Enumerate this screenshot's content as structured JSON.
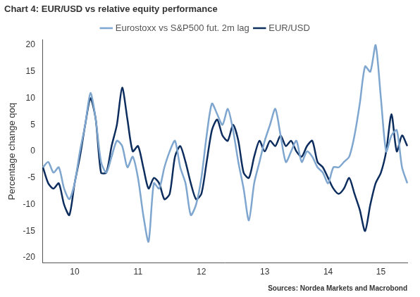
{
  "chart_data": {
    "type": "line",
    "title": "Chart 4: EUR/USD vs relative equity performance",
    "y_label": "Percentage change qoq",
    "source": "Sources: Nordea Markets and Macrobond",
    "categories": [
      null,
      null,
      null,
      null,
      null,
      null,
      "10",
      null,
      null,
      null,
      null,
      null,
      null,
      null,
      null,
      null,
      null,
      null,
      "11",
      null,
      null,
      null,
      null,
      null,
      null,
      null,
      null,
      null,
      null,
      null,
      "12",
      null,
      null,
      null,
      null,
      null,
      null,
      null,
      null,
      null,
      null,
      null,
      "13",
      null,
      null,
      null,
      null,
      null,
      null,
      null,
      null,
      null,
      null,
      null,
      "14",
      null,
      null,
      null,
      null,
      null,
      null,
      null,
      null,
      null,
      "15",
      null,
      null,
      null,
      null,
      null
    ],
    "series": [
      {
        "name": "Eurostoxx vs S&P500 fut. 2m lag",
        "color": "#7ea6cf",
        "values": [
          -3,
          -2,
          -4,
          -3,
          -7,
          -9,
          -6,
          0,
          5,
          11,
          6,
          -2,
          -4,
          -1,
          2,
          1,
          -3,
          -1,
          -5,
          -12,
          -17,
          -6,
          -7,
          -3,
          0,
          2,
          -3,
          -6,
          -12,
          -10,
          -5,
          3,
          9,
          7,
          5,
          8,
          4,
          -2,
          -7,
          -13,
          -6,
          -2,
          2,
          5,
          8,
          3,
          -2,
          0,
          2,
          -2,
          0,
          -1,
          -3,
          -4,
          -6,
          -3,
          -3,
          -2,
          -1,
          3,
          9,
          16,
          15,
          20,
          10,
          0,
          3,
          4,
          -3,
          -6
        ]
      },
      {
        "name": "EUR/USD",
        "color": "#0c2d5e",
        "values": [
          -3,
          -6,
          -7,
          -6,
          -10,
          -12,
          -6,
          -1,
          5,
          10,
          6,
          -4,
          -4,
          1,
          5,
          12,
          6,
          0,
          1,
          -3,
          -7,
          -5,
          -6,
          -9,
          -8,
          -1,
          1,
          -2,
          -6,
          -9,
          -8,
          -2,
          4,
          6,
          3,
          2,
          5,
          2,
          -4,
          -5,
          -1,
          2,
          0,
          2,
          1,
          3,
          1,
          2,
          0,
          -1,
          1,
          2,
          -2,
          -3,
          -5,
          -7,
          -8,
          -7,
          -5,
          -8,
          -11,
          -15,
          -10,
          -6,
          -4,
          0,
          7,
          0,
          3,
          1
        ]
      }
    ],
    "ylim": [
      -21,
      21
    ],
    "yticks": [
      -20,
      -15,
      -10,
      -5,
      0,
      5,
      10,
      15,
      20
    ],
    "grid": false,
    "legend": "top"
  }
}
